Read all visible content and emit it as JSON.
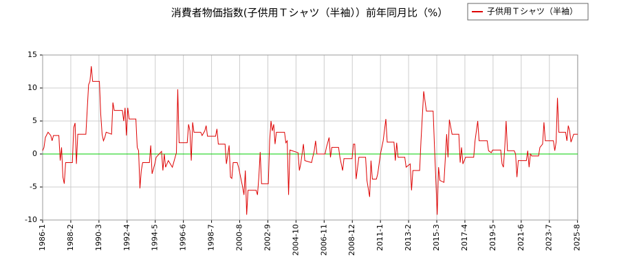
{
  "chart_data": {
    "type": "line",
    "title": "消費者物価指数(子供用Ｔシャツ（半袖））前年同月比（%）",
    "x": [
      1986.0,
      1986.1,
      1986.2,
      1986.4,
      1986.6,
      1986.7,
      1986.8,
      1987.2,
      1987.3,
      1987.4,
      1987.5,
      1987.6,
      1987.7,
      1988.2,
      1988.3,
      1988.4,
      1988.5,
      1988.6,
      1989.2,
      1989.4,
      1989.5,
      1989.6,
      1989.7,
      1990.2,
      1990.3,
      1990.4,
      1990.5,
      1990.6,
      1990.7,
      1991.1,
      1991.2,
      1991.3,
      1991.9,
      1992.0,
      1992.1,
      1992.2,
      1992.3,
      1992.4,
      1992.9,
      1993.0,
      1993.1,
      1993.2,
      1993.3,
      1993.4,
      1993.9,
      1994.0,
      1994.1,
      1994.3,
      1994.4,
      1994.8,
      1994.9,
      1995.0,
      1995.1,
      1995.3,
      1995.6,
      1995.9,
      1996.0,
      1996.1,
      1996.7,
      1996.8,
      1996.9,
      1997.0,
      1997.1,
      1997.2,
      1997.7,
      1997.8,
      1998.0,
      1998.1,
      1998.2,
      1998.8,
      1998.9,
      1999.0,
      1999.5,
      1999.6,
      1999.8,
      1999.9,
      2000.0,
      2000.1,
      2000.4,
      2000.5,
      2000.7,
      2000.8,
      2000.9,
      2001.0,
      2001.1,
      2001.2,
      2001.8,
      2001.9,
      2002.0,
      2002.1,
      2002.2,
      2002.7,
      2002.8,
      2002.9,
      2003.0,
      2003.1,
      2003.2,
      2003.3,
      2003.9,
      2004.0,
      2004.1,
      2004.2,
      2004.3,
      2004.9,
      2005.0,
      2005.1,
      2005.3,
      2005.4,
      2005.9,
      2006.1,
      2006.2,
      2006.3,
      2006.9,
      2007.0,
      2007.2,
      2007.3,
      2007.4,
      2007.9,
      2008.0,
      2008.2,
      2008.3,
      2008.9,
      2009.0,
      2009.1,
      2009.2,
      2009.4,
      2009.9,
      2010.0,
      2010.2,
      2010.3,
      2010.4,
      2010.7,
      2010.8,
      2011.0,
      2011.2,
      2011.4,
      2011.5,
      2012.0,
      2012.1,
      2012.2,
      2012.3,
      2012.8,
      2012.9,
      2013.2,
      2013.3,
      2013.4,
      2013.9,
      2014.0,
      2014.2,
      2014.4,
      2014.9,
      2015.0,
      2015.1,
      2015.2,
      2015.3,
      2015.4,
      2015.7,
      2015.9,
      2016.0,
      2016.1,
      2016.3,
      2016.8,
      2016.9,
      2017.0,
      2017.1,
      2017.3,
      2017.9,
      2018.0,
      2018.2,
      2018.3,
      2018.9,
      2019.0,
      2019.2,
      2019.3,
      2019.9,
      2020.0,
      2020.1,
      2020.2,
      2020.3,
      2020.4,
      2020.9,
      2021.0,
      2021.1,
      2021.2,
      2021.8,
      2021.9,
      2022.0,
      2022.1,
      2022.2,
      2022.7,
      2022.8,
      2023.0,
      2023.1,
      2023.2,
      2023.8,
      2023.9,
      2024.0,
      2024.1,
      2024.2,
      2024.7,
      2024.8,
      2024.9,
      2025.0,
      2025.1,
      2025.3,
      2025.6
    ],
    "series": [
      {
        "name": "子供用Ｔシャツ（半袖）",
        "color": "#dd0000",
        "values": [
          0.5,
          1,
          2.5,
          3.3,
          2.8,
          2,
          2.8,
          2.8,
          -1,
          1,
          -3.5,
          -4.5,
          -1.3,
          -1.3,
          4,
          4.7,
          -1.5,
          3,
          3,
          10.5,
          11,
          13.3,
          11,
          11,
          6,
          3,
          2,
          2.5,
          3.3,
          3,
          7.8,
          6.6,
          6.6,
          5,
          7,
          2.8,
          7,
          5.3,
          5.3,
          1,
          0.5,
          -5.2,
          -2.5,
          -1.3,
          -1.3,
          1.3,
          -3,
          -1.5,
          -0.5,
          0.4,
          -2.5,
          0,
          -2,
          -1,
          -2,
          0.2,
          9.8,
          1.7,
          1.7,
          4.5,
          3.5,
          -1,
          4.8,
          3.3,
          3.3,
          2.8,
          3.5,
          4.3,
          2.7,
          2.7,
          3.8,
          1.5,
          1.5,
          -1.5,
          1.3,
          -3.5,
          -3.7,
          -1.3,
          -1.3,
          -2,
          -4,
          -5,
          -6.2,
          -2.5,
          -9.2,
          -5.5,
          -5.5,
          -6.2,
          -3.5,
          0.3,
          -4.5,
          -4.5,
          2,
          5,
          3.5,
          4.5,
          1.5,
          3.3,
          3.3,
          1.7,
          2,
          -6.2,
          0.6,
          0.2,
          -2.5,
          -1.5,
          1.5,
          -1,
          -1.3,
          0.5,
          2,
          0,
          0,
          1,
          2.5,
          -0.5,
          1,
          1,
          -0.5,
          -2.5,
          -0.7,
          -0.7,
          1.5,
          1.5,
          -3.8,
          -0.5,
          -0.5,
          -4,
          -6.5,
          -1,
          -3.8,
          -3.8,
          -3,
          0,
          2,
          5.3,
          1.8,
          1.8,
          -1,
          1.7,
          -0.5,
          -0.5,
          -2,
          -1.5,
          -5.5,
          -2.5,
          -2.5,
          2,
          9.5,
          6.5,
          6.5,
          1,
          -4,
          -9.2,
          -2,
          -4,
          -4.3,
          3,
          -0.5,
          5.2,
          3,
          3,
          -1.3,
          1,
          -1.5,
          -0.5,
          -0.5,
          2,
          5,
          2,
          2,
          0.5,
          0.2,
          0.6,
          0.6,
          -1.5,
          -2,
          1,
          5,
          0.5,
          0.5,
          0,
          -3.5,
          -1,
          -1,
          0.5,
          -2,
          0,
          -0.3,
          -0.3,
          1,
          1.5,
          4.8,
          2,
          2,
          0.5,
          1.8,
          8.5,
          3.3,
          3.3,
          2,
          4.3,
          3.5,
          1.8,
          3,
          3
        ]
      }
    ],
    "xlim": [
      1986.0,
      2025.6
    ],
    "xticks": [
      {
        "value": 1986.0,
        "label": "1986-1"
      },
      {
        "value": 1988.083,
        "label": "1988-2"
      },
      {
        "value": 1990.167,
        "label": "1990-3"
      },
      {
        "value": 1992.25,
        "label": "1992-4"
      },
      {
        "value": 1994.333,
        "label": "1994-5"
      },
      {
        "value": 1996.417,
        "label": "1996-6"
      },
      {
        "value": 1998.5,
        "label": "1998-7"
      },
      {
        "value": 2000.583,
        "label": "2000-8"
      },
      {
        "value": 2002.667,
        "label": "2002-9"
      },
      {
        "value": 2004.75,
        "label": "2004-10"
      },
      {
        "value": 2006.833,
        "label": "2006-11"
      },
      {
        "value": 2008.917,
        "label": "2008-12"
      },
      {
        "value": 2011.0,
        "label": "2011-1"
      },
      {
        "value": 2013.083,
        "label": "2013-2"
      },
      {
        "value": 2015.167,
        "label": "2015-3"
      },
      {
        "value": 2017.25,
        "label": "2017-4"
      },
      {
        "value": 2019.333,
        "label": "2019-5"
      },
      {
        "value": 2021.417,
        "label": "2021-6"
      },
      {
        "value": 2023.5,
        "label": "2023-7"
      },
      {
        "value": 2025.583,
        "label": "2025-8"
      }
    ],
    "ylim": [
      -10,
      15
    ],
    "yticks": [
      -10,
      -5,
      0,
      5,
      10,
      15
    ],
    "grid": true,
    "reference_line": {
      "value": 0,
      "color": "#00cc00"
    },
    "legend": "top-right"
  }
}
